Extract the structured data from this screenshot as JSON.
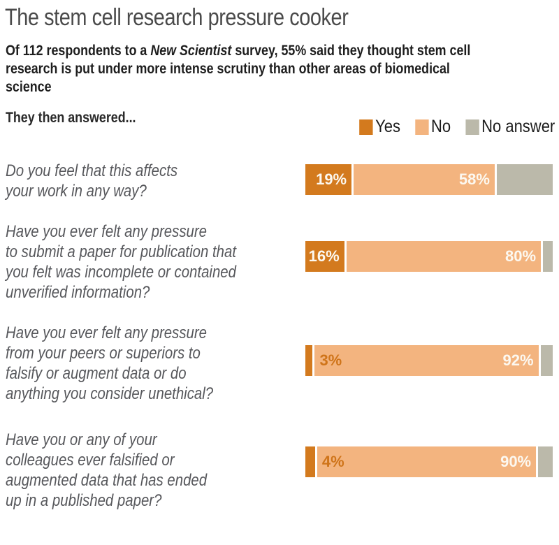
{
  "header": {
    "title": "The stem cell research pressure cooker",
    "intro_part1": "Of 112 respondents to a ",
    "intro_italic": "New Scientist",
    "intro_part2": " survey, 55% said they thought stem cell research is put under more intense scrutiny than other areas of biomedical science",
    "prompt": "They then answered..."
  },
  "legend": [
    {
      "label": "Yes",
      "color": "#d37a1e"
    },
    {
      "label": "No",
      "color": "#f3b47f"
    },
    {
      "label": "No answer",
      "color": "#bbb9aa"
    }
  ],
  "chart_data": {
    "type": "bar",
    "orientation": "horizontal",
    "stacked": true,
    "unit": "percent",
    "title": "The stem cell research pressure cooker",
    "legend_position": "top-right",
    "series_names": [
      "Yes",
      "No",
      "No answer"
    ],
    "colors": {
      "yes": "#d37a1e",
      "no": "#f3b47f",
      "no_answer": "#bbb9aa"
    },
    "xlim": [
      0,
      100
    ],
    "rows": [
      {
        "question": "Do you feel that this affects your work in any way?",
        "question_lines": [
          "Do you feel that this affects",
          "your work in any way?"
        ],
        "yes": 19,
        "no": 58,
        "no_answer": 23,
        "yes_label": "19%",
        "no_label": "58%",
        "yes_label_placement": "inside-yes"
      },
      {
        "question": "Have you ever felt any pressure to submit a paper for publication that you felt was incomplete or contained unverified information?",
        "question_lines": [
          "Have you ever felt any pressure",
          "to submit a paper for publication that",
          "you felt was incomplete or contained",
          "unverified information?"
        ],
        "yes": 16,
        "no": 80,
        "no_answer": 4,
        "yes_label": "16%",
        "no_label": "80%",
        "yes_label_placement": "inside-yes"
      },
      {
        "question": "Have you ever felt any pressure from your peers or superiors to falsify or augment data or do anything you consider unethical?",
        "question_lines": [
          "Have you ever felt any pressure",
          "from your peers or superiors to",
          "falsify or augment data or do",
          "anything you consider unethical?"
        ],
        "yes": 3,
        "no": 92,
        "no_answer": 5,
        "yes_label": "3%",
        "no_label": "92%",
        "yes_label_placement": "inside-no"
      },
      {
        "question": "Have you or any of your colleagues ever falsified or augmented data that has ended up in a published paper?",
        "question_lines": [
          "Have you or any of your",
          "colleagues ever falsified or",
          "augmented data that has ended",
          "up in a published paper?"
        ],
        "yes": 4,
        "no": 90,
        "no_answer": 6,
        "yes_label": "4%",
        "no_label": "90%",
        "yes_label_placement": "inside-no"
      }
    ]
  }
}
